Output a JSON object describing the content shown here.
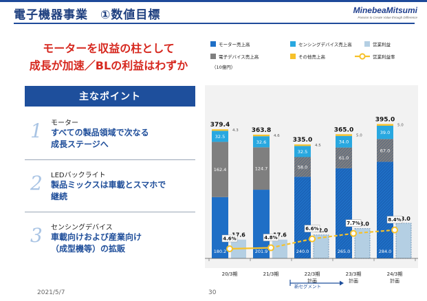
{
  "header": {
    "title": "電子機器事業　①数値目標",
    "logo_main": "MinebeaMitsumi",
    "logo_sub": "Passion to Create Value through Difference"
  },
  "headline": {
    "line1": "モーターを収益の柱として",
    "line2": "成長が加速／BLの利益はわずか"
  },
  "points": {
    "title": "主なポイント",
    "items": [
      {
        "num": "1",
        "category": "モーター",
        "lines": [
          "すべての製品領域で次なる",
          "成長ステージへ"
        ]
      },
      {
        "num": "2",
        "category": "LEDバックライト",
        "lines": [
          "製品ミックスは車載とスマホで",
          "継続"
        ]
      },
      {
        "num": "3",
        "category": "センシングデバイス",
        "lines": [
          "車載向けおよび産業向け",
          "（成型機等）の拡販"
        ]
      }
    ]
  },
  "footer": {
    "date": "2021/5/7",
    "page": "30"
  },
  "chart_data": {
    "type": "bar",
    "unit_label": "（10億円）",
    "categories": [
      {
        "line1": "20/3期",
        "line2": ""
      },
      {
        "line1": "21/3期",
        "line2": ""
      },
      {
        "line1": "22/3期",
        "line2": "計画"
      },
      {
        "line1": "23/3期",
        "line2": "計画"
      },
      {
        "line1": "24/3期",
        "line2": "計画"
      }
    ],
    "sales_total": [
      "379.4",
      "363.8",
      "335.0",
      "365.0",
      "395.0"
    ],
    "series": [
      {
        "name": "モーター売上高",
        "values": [
          "180.2",
          "201.9",
          "240.0",
          "265.0",
          "284.0"
        ]
      },
      {
        "name": "電子デバイス売上高",
        "values": [
          "162.4",
          "124.7",
          "58.0",
          "61.0",
          "67.0"
        ]
      },
      {
        "name": "センシングデバイス売上高",
        "values": [
          "32.5",
          "32.6",
          "32.5",
          "34.0",
          "39.0"
        ]
      },
      {
        "name": "その他売上高",
        "values": [
          "4.3",
          "4.6",
          "4.5",
          "5.0",
          "5.0"
        ]
      }
    ],
    "operating_income": {
      "name": "営業利益",
      "values": [
        "17.6",
        "17.6",
        "22.0",
        "28.0",
        "33.0"
      ]
    },
    "operating_margin": {
      "name": "営業利益率",
      "values": [
        "4.6%",
        "4.8%",
        "6.6%",
        "7.7%",
        "8.4%"
      ]
    },
    "new_segment_label": "新セグメント",
    "colors": {
      "motor": "#1f6fc6",
      "motor_plan": "#1f6fc6",
      "electronic": "#7f7f7f",
      "sensing": "#29a8e0",
      "other": "#f6c12a",
      "op_income": "#b4cfe3",
      "margin_line": "#f6c12a",
      "bg": "#f2f2f2"
    }
  }
}
